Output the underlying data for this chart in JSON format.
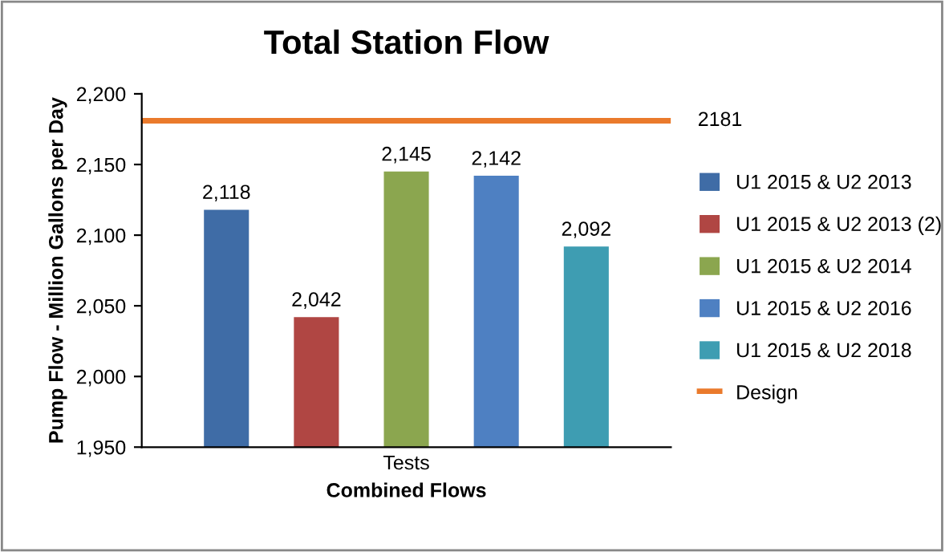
{
  "chart_data": {
    "type": "bar",
    "title": "Total Station Flow",
    "xlabel": "Combined Flows",
    "ylabel": "Pump Flow - Million Gallons per Day",
    "categories": [
      "Tests"
    ],
    "series": [
      {
        "name": "U1 2015 & U2 2013",
        "color": "#3f6ca6",
        "values": [
          2118
        ],
        "value_labels": [
          "2,118"
        ]
      },
      {
        "name": "U1 2015 & U2 2013 (2)",
        "color": "#b04643",
        "values": [
          2042
        ],
        "value_labels": [
          "2,042"
        ]
      },
      {
        "name": "U1 2015 & U2 2014",
        "color": "#8ba64f",
        "values": [
          2145
        ],
        "value_labels": [
          "2,145"
        ]
      },
      {
        "name": "U1 2015 & U2 2016",
        "color": "#4e80c2",
        "values": [
          2142
        ],
        "value_labels": [
          "2,142"
        ]
      },
      {
        "name": "U1 2015 & U2 2018",
        "color": "#3e9db2",
        "values": [
          2092
        ],
        "value_labels": [
          "2,092"
        ]
      }
    ],
    "ref_lines": [
      {
        "axis": "y",
        "value": 2181,
        "label": "Design",
        "color": "#ea7a2c",
        "line_style": "solid"
      }
    ],
    "annotations": [
      "2181"
    ],
    "ylim": [
      1950,
      2200
    ],
    "yticks": [
      {
        "value": 1950,
        "label": "1,950"
      },
      {
        "value": 2000,
        "label": "2,000"
      },
      {
        "value": 2050,
        "label": "2,050"
      },
      {
        "value": 2100,
        "label": "2,100"
      },
      {
        "value": 2150,
        "label": "2,150"
      },
      {
        "value": 2200,
        "label": "2,200"
      }
    ],
    "legend": "right"
  }
}
